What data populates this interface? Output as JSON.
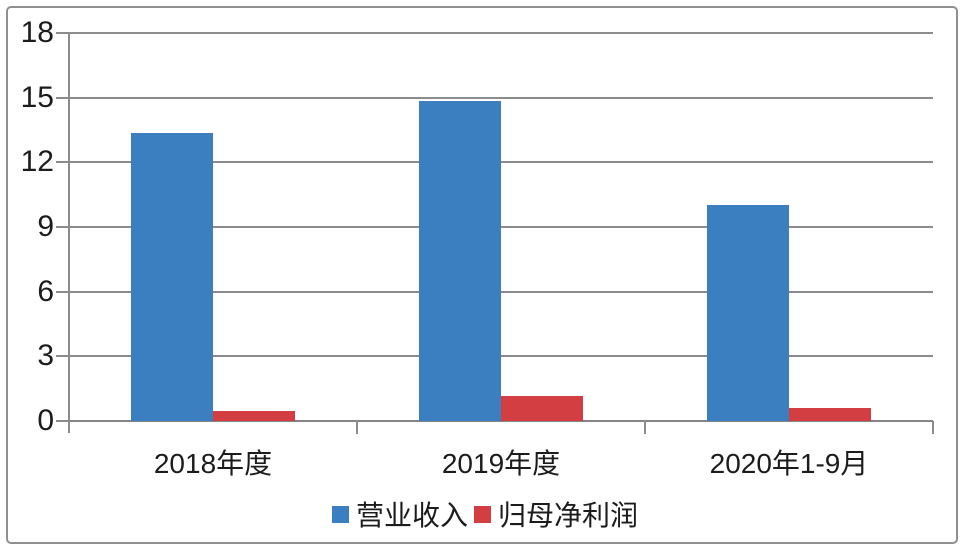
{
  "chart_data": {
    "type": "bar",
    "title": "",
    "categories": [
      "2018年度",
      "2019年度",
      "2020年1-9月"
    ],
    "series": [
      {
        "name": "营业收入",
        "color": "#3c7fc1",
        "values": [
          13.35,
          14.85,
          10.0
        ]
      },
      {
        "name": "归母净利润",
        "color": "#d23e41",
        "values": [
          0.45,
          1.15,
          0.6
        ]
      }
    ],
    "xlabel": "",
    "ylabel": "",
    "y_axis": {
      "min": 0,
      "max": 18,
      "step": 3,
      "ticks": [
        0,
        3,
        6,
        9,
        12,
        15,
        18
      ]
    },
    "grid": true,
    "legend_position": "bottom",
    "legend": [
      "营业收入",
      "归母净利润"
    ],
    "colors": {
      "series_blue": "#3c7fc1",
      "series_red": "#d23e41",
      "gridline": "#8c8c8c",
      "text": "#1c1c1c",
      "frame_border": "#8f8f8f",
      "background": "#ffffff"
    }
  }
}
